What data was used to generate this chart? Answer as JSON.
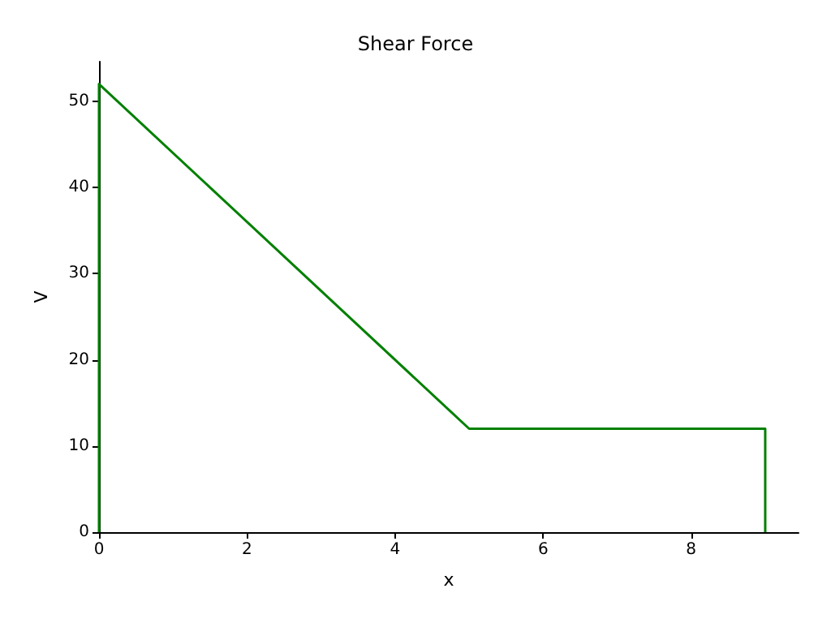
{
  "chart_data": {
    "type": "line",
    "title": "Shear Force",
    "xlabel": "x",
    "ylabel": "V",
    "series": [
      {
        "color": "#008000",
        "x": [
          0,
          0,
          5,
          9,
          9
        ],
        "values": [
          0,
          52,
          12,
          12,
          0
        ]
      }
    ],
    "xlim": [
      0,
      9.45
    ],
    "xticks": [
      0,
      2,
      4,
      6,
      8
    ],
    "ylim": [
      0,
      54.6
    ],
    "yticks": [
      0,
      10,
      20,
      30,
      40,
      50
    ],
    "grid": false,
    "marker": "none",
    "line_style": "solid"
  }
}
